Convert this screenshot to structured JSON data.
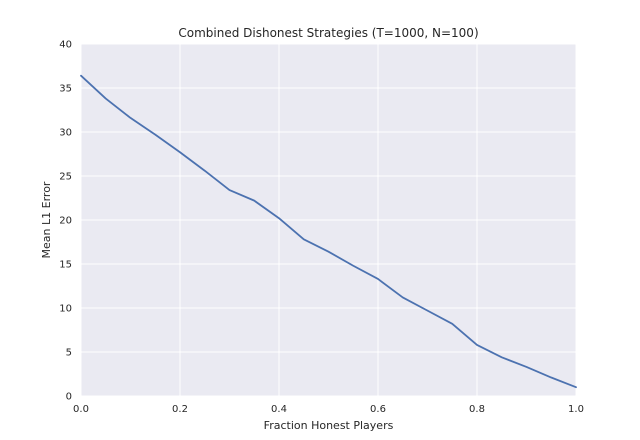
{
  "chart_data": {
    "type": "line",
    "title": "Combined Dishonest Strategies (T=1000, N=100)",
    "xlabel": "Fraction Honest Players",
    "ylabel": "Mean L1 Error",
    "xlim": [
      0.0,
      1.0
    ],
    "ylim": [
      0,
      40
    ],
    "xticks": [
      "0.0",
      "0.2",
      "0.4",
      "0.6",
      "0.8",
      "1.0"
    ],
    "yticks": [
      "0",
      "5",
      "10",
      "15",
      "20",
      "25",
      "30",
      "35",
      "40"
    ],
    "grid": true,
    "background": "#EAEAF2",
    "grid_color": "#FFFFFF",
    "series": [
      {
        "color": "#4C72B0",
        "x": [
          0.0,
          0.05,
          0.1,
          0.15,
          0.2,
          0.25,
          0.3,
          0.35,
          0.4,
          0.45,
          0.5,
          0.55,
          0.6,
          0.65,
          0.7,
          0.75,
          0.8,
          0.85,
          0.9,
          0.95,
          1.0
        ],
        "y": [
          36.4,
          33.8,
          31.6,
          29.7,
          27.7,
          25.6,
          23.4,
          22.2,
          20.2,
          17.8,
          16.4,
          14.8,
          13.3,
          11.2,
          9.7,
          8.2,
          5.8,
          4.4,
          3.3,
          2.1,
          1.0
        ]
      }
    ]
  }
}
